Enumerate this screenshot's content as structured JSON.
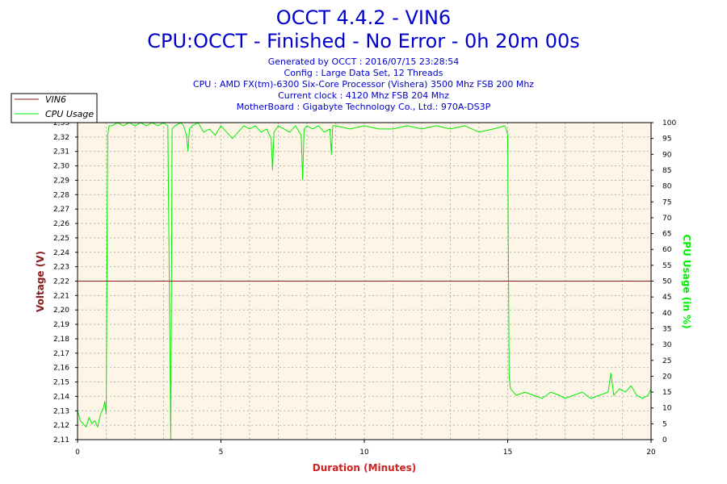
{
  "header": {
    "title": "OCCT 4.4.2 - VIN6",
    "subtitle": "CPU:OCCT - Finished - No Error - 0h 20m 00s",
    "info": [
      "Generated by OCCT : 2016/07/15 23:28:54",
      "Config : Large Data Set, 12 Threads",
      "CPU : AMD FX(tm)-6300 Six-Core Processor (Vishera) 3500 Mhz FSB 200 Mhz",
      "Current clock : 4120 Mhz FSB 204 Mhz",
      "MotherBoard : Gigabyte Technology Co., Ltd.: 970A-DS3P"
    ]
  },
  "colors": {
    "vin6": "#8b1a1a",
    "cpu": "#00ee00",
    "plot_bg": "#fdf5e6",
    "title": "#0000cc",
    "xlabel": "#cc2222"
  },
  "chart_data": {
    "type": "line",
    "title": "OCCT 4.4.2 - VIN6",
    "xlabel": "Duration (Minutes)",
    "ylabel": "Voltage (V)",
    "ylabel_right": "CPU Usage (in %)",
    "xlim": [
      0,
      20
    ],
    "ylim": [
      2.11,
      2.33
    ],
    "ylim_right": [
      0,
      100
    ],
    "x_ticks": [
      "0",
      "5",
      "10",
      "15",
      "20"
    ],
    "y_ticks": [
      "2,11",
      "2,12",
      "2,13",
      "2,14",
      "2,15",
      "2,16",
      "2,17",
      "2,18",
      "2,19",
      "2,20",
      "2,21",
      "2,22",
      "2,23",
      "2,24",
      "2,25",
      "2,26",
      "2,27",
      "2,28",
      "2,29",
      "2,30",
      "2,31",
      "2,32",
      "2,33"
    ],
    "y_ticks_right": [
      "0",
      "5",
      "10",
      "15",
      "20",
      "25",
      "30",
      "35",
      "40",
      "45",
      "50",
      "55",
      "60",
      "65",
      "70",
      "75",
      "80",
      "85",
      "90",
      "95",
      "100"
    ],
    "grid": true,
    "legend_position": "top-left",
    "series": [
      {
        "name": "VIN6",
        "axis": "left",
        "x": [
          0,
          20
        ],
        "y": [
          2.22,
          2.22
        ]
      },
      {
        "name": "CPU Usage",
        "axis": "right",
        "x": [
          0,
          0.1,
          0.2,
          0.3,
          0.4,
          0.5,
          0.6,
          0.7,
          0.8,
          0.9,
          0.95,
          1.0,
          1.05,
          1.1,
          1.2,
          1.4,
          1.6,
          1.8,
          2.0,
          2.2,
          2.4,
          2.6,
          2.8,
          3.0,
          3.15,
          3.2,
          3.25,
          3.3,
          3.4,
          3.6,
          3.7,
          3.8,
          3.85,
          3.9,
          4.0,
          4.2,
          4.4,
          4.6,
          4.8,
          5.0,
          5.2,
          5.4,
          5.6,
          5.8,
          6.0,
          6.2,
          6.4,
          6.6,
          6.75,
          6.8,
          6.85,
          7.0,
          7.2,
          7.4,
          7.6,
          7.8,
          7.85,
          7.9,
          8.0,
          8.2,
          8.4,
          8.6,
          8.8,
          8.85,
          8.9,
          9.0,
          9.5,
          10.0,
          10.5,
          11.0,
          11.5,
          12.0,
          12.5,
          13.0,
          13.5,
          14.0,
          14.5,
          14.9,
          14.95,
          15.0,
          15.05,
          15.1,
          15.3,
          15.6,
          15.9,
          16.2,
          16.5,
          16.8,
          17.0,
          17.3,
          17.6,
          17.9,
          18.2,
          18.5,
          18.6,
          18.7,
          18.9,
          19.1,
          19.3,
          19.5,
          19.7,
          19.9,
          20.0
        ],
        "y": [
          9,
          6,
          5,
          4,
          7,
          5,
          6,
          4,
          8,
          10,
          12,
          8,
          96,
          99,
          99,
          100,
          99,
          100,
          99,
          100,
          99,
          100,
          99,
          100,
          99,
          50,
          0,
          98,
          99,
          100,
          99,
          96,
          91,
          98,
          99,
          100,
          97,
          98,
          96,
          99,
          97,
          95,
          97,
          99,
          98,
          99,
          97,
          98,
          95,
          85,
          97,
          99,
          98,
          97,
          99,
          96,
          82,
          98,
          99,
          98,
          99,
          97,
          98,
          90,
          99,
          99,
          98,
          99,
          98,
          98,
          99,
          98,
          99,
          98,
          99,
          97,
          98,
          99,
          98,
          96,
          20,
          16,
          14,
          15,
          14,
          13,
          15,
          14,
          13,
          14,
          15,
          13,
          14,
          15,
          21,
          14,
          16,
          15,
          17,
          14,
          13,
          14,
          16
        ]
      }
    ]
  }
}
